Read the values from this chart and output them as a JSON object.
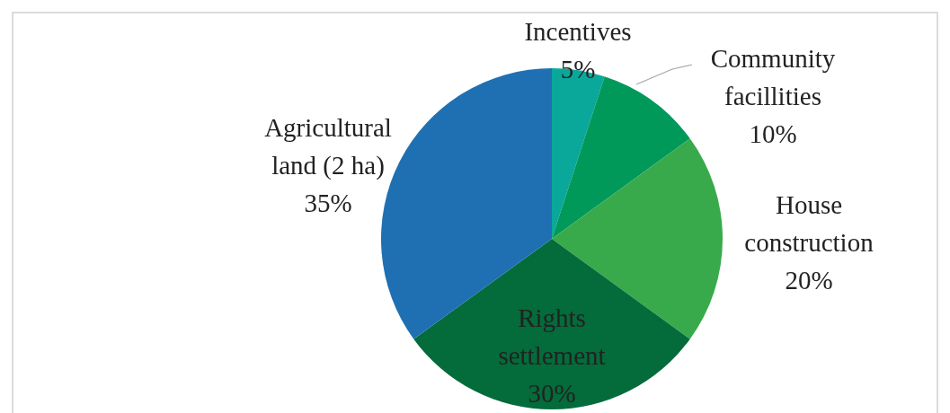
{
  "chart_data": {
    "type": "pie",
    "categories": [
      "Incentives",
      "Community facillities",
      "House construction",
      "Rights settlement",
      "Agricultural land (2 ha)"
    ],
    "values": [
      5,
      10,
      20,
      30,
      35
    ],
    "colors": [
      "#0aa89b",
      "#00995a",
      "#38aa4b",
      "#046b3b",
      "#1f70b2"
    ],
    "value_labels": [
      "5%",
      "10%",
      "20%",
      "30%",
      "35%"
    ]
  }
}
